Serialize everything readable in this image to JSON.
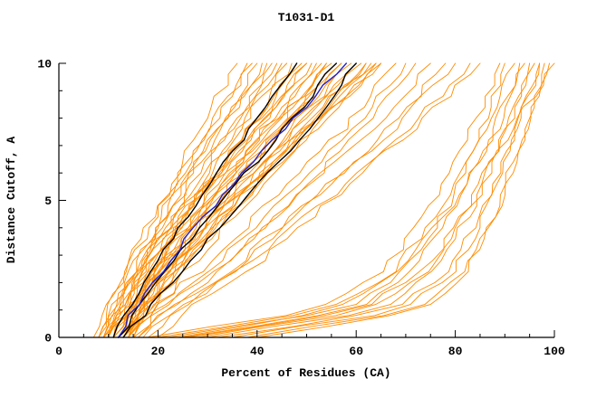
{
  "title": "T1031-D1",
  "colors": {
    "model_orange": "#ff8c00",
    "reference_black": "#000000",
    "highlight_blue": "#2222cc",
    "axis": "#000000",
    "background": "#ffffff"
  },
  "chart_data": {
    "type": "line",
    "title": "T1031-D1",
    "xlabel": "Percent of Residues (CA)",
    "ylabel": "Distance Cutoff, A",
    "xlim": [
      0,
      100
    ],
    "ylim": [
      0,
      10
    ],
    "x_major_ticks": [
      0,
      20,
      40,
      60,
      80,
      100
    ],
    "x_minor_step": 5,
    "y_major_ticks": [
      0,
      5,
      10
    ],
    "y_minor_step": 1,
    "grid": false,
    "legend": "none",
    "description": "Cumulative distance-cutoff curves (GDT-style plot): percent of CA residues under each distance cutoff for many predicted models (orange), reference models (black) and one highlighted model (blue). Curve x-values are given at control cutoffs y = 0, 1, 2.5, 5, 7.5, 10 A.",
    "y_control_points": [
      0,
      1,
      2.5,
      5,
      7.5,
      10
    ],
    "series_groups": [
      {
        "name": "models-orange",
        "color": "#ff8c00",
        "stroke_width": 0.9,
        "jitter": 2.0,
        "curves": [
          [
            8,
            10,
            14,
            21,
            28,
            36
          ],
          [
            9,
            11,
            15,
            22,
            30,
            38
          ],
          [
            10,
            12,
            16,
            24,
            32,
            40
          ],
          [
            8,
            11,
            15,
            23,
            32,
            42
          ],
          [
            11,
            14,
            17,
            25,
            34,
            43
          ],
          [
            9,
            12,
            16,
            25,
            34,
            44
          ],
          [
            12,
            15,
            19,
            27,
            36,
            45
          ],
          [
            10,
            13,
            17,
            26,
            36,
            46
          ],
          [
            13,
            16,
            20,
            28,
            38,
            47
          ],
          [
            11,
            14,
            18,
            28,
            38,
            48
          ],
          [
            9,
            12,
            17,
            27,
            38,
            49
          ],
          [
            12,
            15,
            20,
            29,
            39,
            50
          ],
          [
            10,
            13,
            18,
            28,
            40,
            51
          ],
          [
            14,
            17,
            22,
            31,
            41,
            52
          ],
          [
            11,
            14,
            19,
            30,
            41,
            53
          ],
          [
            13,
            16,
            21,
            31,
            43,
            54
          ],
          [
            9,
            13,
            18,
            30,
            42,
            55
          ],
          [
            12,
            16,
            21,
            32,
            44,
            56
          ],
          [
            14,
            17,
            23,
            33,
            45,
            57
          ],
          [
            10,
            14,
            20,
            32,
            45,
            58
          ],
          [
            13,
            17,
            22,
            34,
            46,
            59
          ],
          [
            15,
            19,
            24,
            35,
            47,
            60
          ],
          [
            11,
            15,
            21,
            34,
            47,
            61
          ],
          [
            14,
            18,
            24,
            36,
            49,
            62
          ],
          [
            12,
            16,
            22,
            35,
            49,
            63
          ],
          [
            15,
            19,
            25,
            37,
            50,
            64
          ],
          [
            13,
            17,
            23,
            36,
            50,
            65
          ],
          [
            8,
            11,
            15,
            23,
            32,
            41
          ],
          [
            16,
            20,
            26,
            38,
            51,
            64
          ],
          [
            10,
            14,
            19,
            30,
            42,
            54
          ],
          [
            7,
            10,
            13,
            21,
            30,
            39
          ],
          [
            12,
            16,
            22,
            35,
            48,
            62
          ],
          [
            9,
            12,
            17,
            27,
            39,
            50
          ],
          [
            11,
            15,
            20,
            32,
            44,
            57
          ],
          [
            14,
            18,
            24,
            37,
            51,
            65
          ],
          [
            12,
            18,
            29,
            43,
            57,
            68
          ],
          [
            14,
            20,
            31,
            45,
            59,
            70
          ],
          [
            16,
            22,
            33,
            47,
            61,
            72
          ],
          [
            13,
            19,
            32,
            47,
            63,
            75
          ],
          [
            18,
            24,
            36,
            51,
            66,
            78
          ],
          [
            15,
            22,
            35,
            51,
            67,
            80
          ],
          [
            20,
            26,
            39,
            55,
            70,
            83
          ],
          [
            17,
            24,
            37,
            54,
            71,
            85
          ],
          [
            20,
            55,
            68,
            78,
            85,
            90
          ],
          [
            25,
            60,
            72,
            81,
            88,
            93
          ],
          [
            30,
            65,
            76,
            84,
            90,
            95
          ],
          [
            18,
            52,
            66,
            76,
            83,
            89
          ],
          [
            35,
            70,
            80,
            87,
            92,
            97
          ],
          [
            22,
            58,
            70,
            79,
            86,
            92
          ],
          [
            28,
            63,
            75,
            83,
            90,
            96
          ],
          [
            40,
            74,
            83,
            89,
            94,
            98
          ],
          [
            32,
            68,
            79,
            86,
            92,
            97
          ],
          [
            24,
            56,
            70,
            80,
            88,
            94
          ],
          [
            38,
            72,
            82,
            89,
            94,
            99
          ],
          [
            26,
            61,
            74,
            84,
            91,
            100
          ]
        ]
      },
      {
        "name": "reference-black",
        "color": "#000000",
        "stroke_width": 1.4,
        "jitter": 1.2,
        "curves": [
          [
            11,
            14,
            19,
            28,
            38,
            48
          ],
          [
            12,
            16,
            22,
            33,
            45,
            56
          ],
          [
            13,
            18,
            25,
            37,
            50,
            60
          ]
        ]
      },
      {
        "name": "highlight-blue",
        "color": "#2222cc",
        "stroke_width": 1.4,
        "jitter": 1.2,
        "curves": [
          [
            12,
            15,
            21,
            32,
            45,
            58
          ]
        ]
      }
    ]
  }
}
